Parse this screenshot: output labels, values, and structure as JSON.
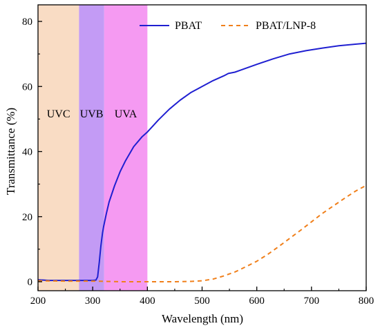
{
  "chart_data": {
    "type": "line",
    "title": "",
    "xlabel": "Wavelength (nm)",
    "ylabel": "Transmittance (%)",
    "xlim": [
      200,
      800
    ],
    "ylim": [
      -2,
      85
    ],
    "x_ticks": [
      200,
      300,
      400,
      500,
      600,
      700,
      800
    ],
    "y_ticks": [
      0,
      20,
      40,
      60,
      80
    ],
    "grid": false,
    "legend_position": "top-right",
    "bands": [
      {
        "label": "UVC",
        "x_start": 200,
        "x_end": 275,
        "color": "#f9dcc4"
      },
      {
        "label": "UVB",
        "x_start": 275,
        "x_end": 321,
        "color": "#c39bf5"
      },
      {
        "label": "UVA",
        "x_start": 321,
        "x_end": 400,
        "color": "#f59af2"
      }
    ],
    "series": [
      {
        "name": "PBAT",
        "style": "solid",
        "color": "#1f1fd1",
        "x": [
          200,
          210,
          220,
          240,
          260,
          280,
          300,
          306,
          309,
          312,
          315,
          318,
          320,
          325,
          330,
          340,
          350,
          360,
          375,
          390,
          400,
          420,
          440,
          460,
          480,
          500,
          520,
          540,
          548,
          560,
          570,
          600,
          630,
          660,
          690,
          720,
          750,
          780,
          800
        ],
        "y": [
          0.6,
          0.5,
          0.4,
          0.4,
          0.4,
          0.4,
          0.4,
          0.5,
          1.5,
          6,
          11,
          15,
          17,
          21,
          24.5,
          29.5,
          33.8,
          37.2,
          41.5,
          44.5,
          46,
          49.7,
          53,
          55.8,
          58.2,
          60,
          61.8,
          63.3,
          64,
          64.4,
          65,
          66.8,
          68.5,
          70,
          71,
          71.8,
          72.5,
          73,
          73.3
        ]
      },
      {
        "name": "PBAT/LNP-8",
        "style": "dashed",
        "color": "#f07f1a",
        "x": [
          200,
          250,
          300,
          350,
          400,
          450,
          480,
          500,
          520,
          540,
          560,
          580,
          600,
          620,
          640,
          660,
          680,
          700,
          720,
          740,
          760,
          780,
          800
        ],
        "y": [
          0.3,
          0.2,
          0.2,
          0,
          0,
          0,
          0.1,
          0.3,
          0.8,
          1.8,
          3,
          4.6,
          6.3,
          8.4,
          10.8,
          13.3,
          15.8,
          18.4,
          21,
          23.3,
          25.6,
          27.8,
          29.6
        ]
      }
    ]
  }
}
